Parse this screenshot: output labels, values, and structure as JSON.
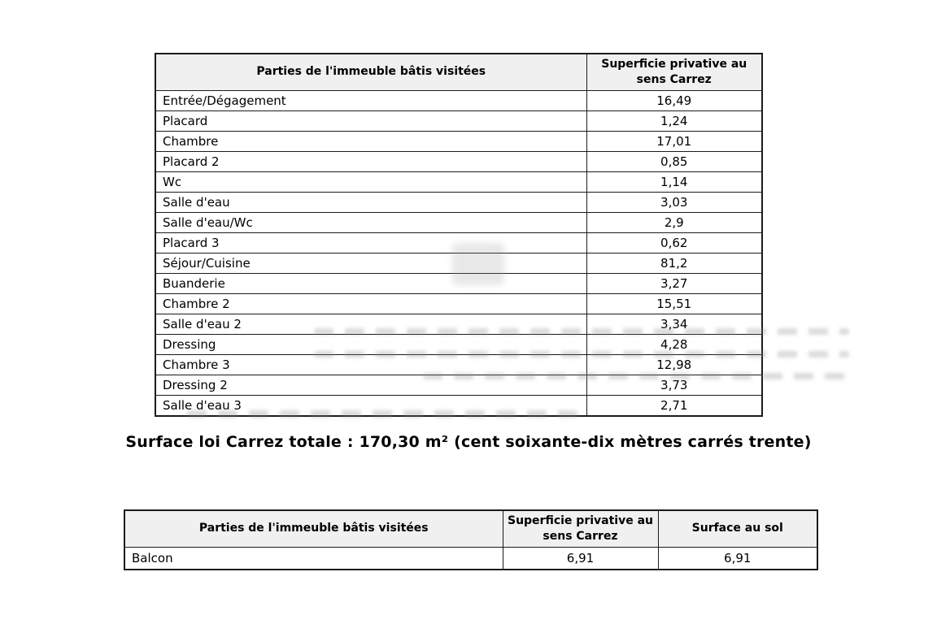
{
  "document": {
    "background": "#ffffff",
    "text_color": "#000000",
    "border_color": "#1b1b1b",
    "header_bg": "#f0f0f0"
  },
  "table1": {
    "headers": [
      "Parties de l'immeuble bâtis visitées",
      "Superficie privative au sens Carrez"
    ],
    "rows": [
      {
        "label": "Entrée/Dégagement",
        "carrez": "16,49"
      },
      {
        "label": "Placard",
        "carrez": "1,24"
      },
      {
        "label": "Chambre",
        "carrez": "17,01"
      },
      {
        "label": "Placard 2",
        "carrez": "0,85"
      },
      {
        "label": "Wc",
        "carrez": "1,14"
      },
      {
        "label": "Salle d'eau",
        "carrez": "3,03"
      },
      {
        "label": "Salle d'eau/Wc",
        "carrez": "2,9"
      },
      {
        "label": "Placard 3",
        "carrez": "0,62"
      },
      {
        "label": "Séjour/Cuisine",
        "carrez": "81,2"
      },
      {
        "label": "Buanderie",
        "carrez": "3,27"
      },
      {
        "label": "Chambre 2",
        "carrez": "15,51"
      },
      {
        "label": "Salle d'eau 2",
        "carrez": "3,34"
      },
      {
        "label": "Dressing",
        "carrez": "4,28"
      },
      {
        "label": "Chambre 3",
        "carrez": "12,98"
      },
      {
        "label": "Dressing 2",
        "carrez": "3,73"
      },
      {
        "label": "Salle d'eau 3",
        "carrez": "2,71"
      }
    ]
  },
  "total_line": "Surface loi Carrez totale : 170,30 m² (cent soixante-dix mètres carrés trente)",
  "table2": {
    "headers": [
      "Parties de l'immeuble bâtis visitées",
      "Superficie privative au sens Carrez",
      "Surface au sol"
    ],
    "rows": [
      {
        "label": "Balcon",
        "carrez": "6,91",
        "floor": "6,91"
      }
    ]
  }
}
